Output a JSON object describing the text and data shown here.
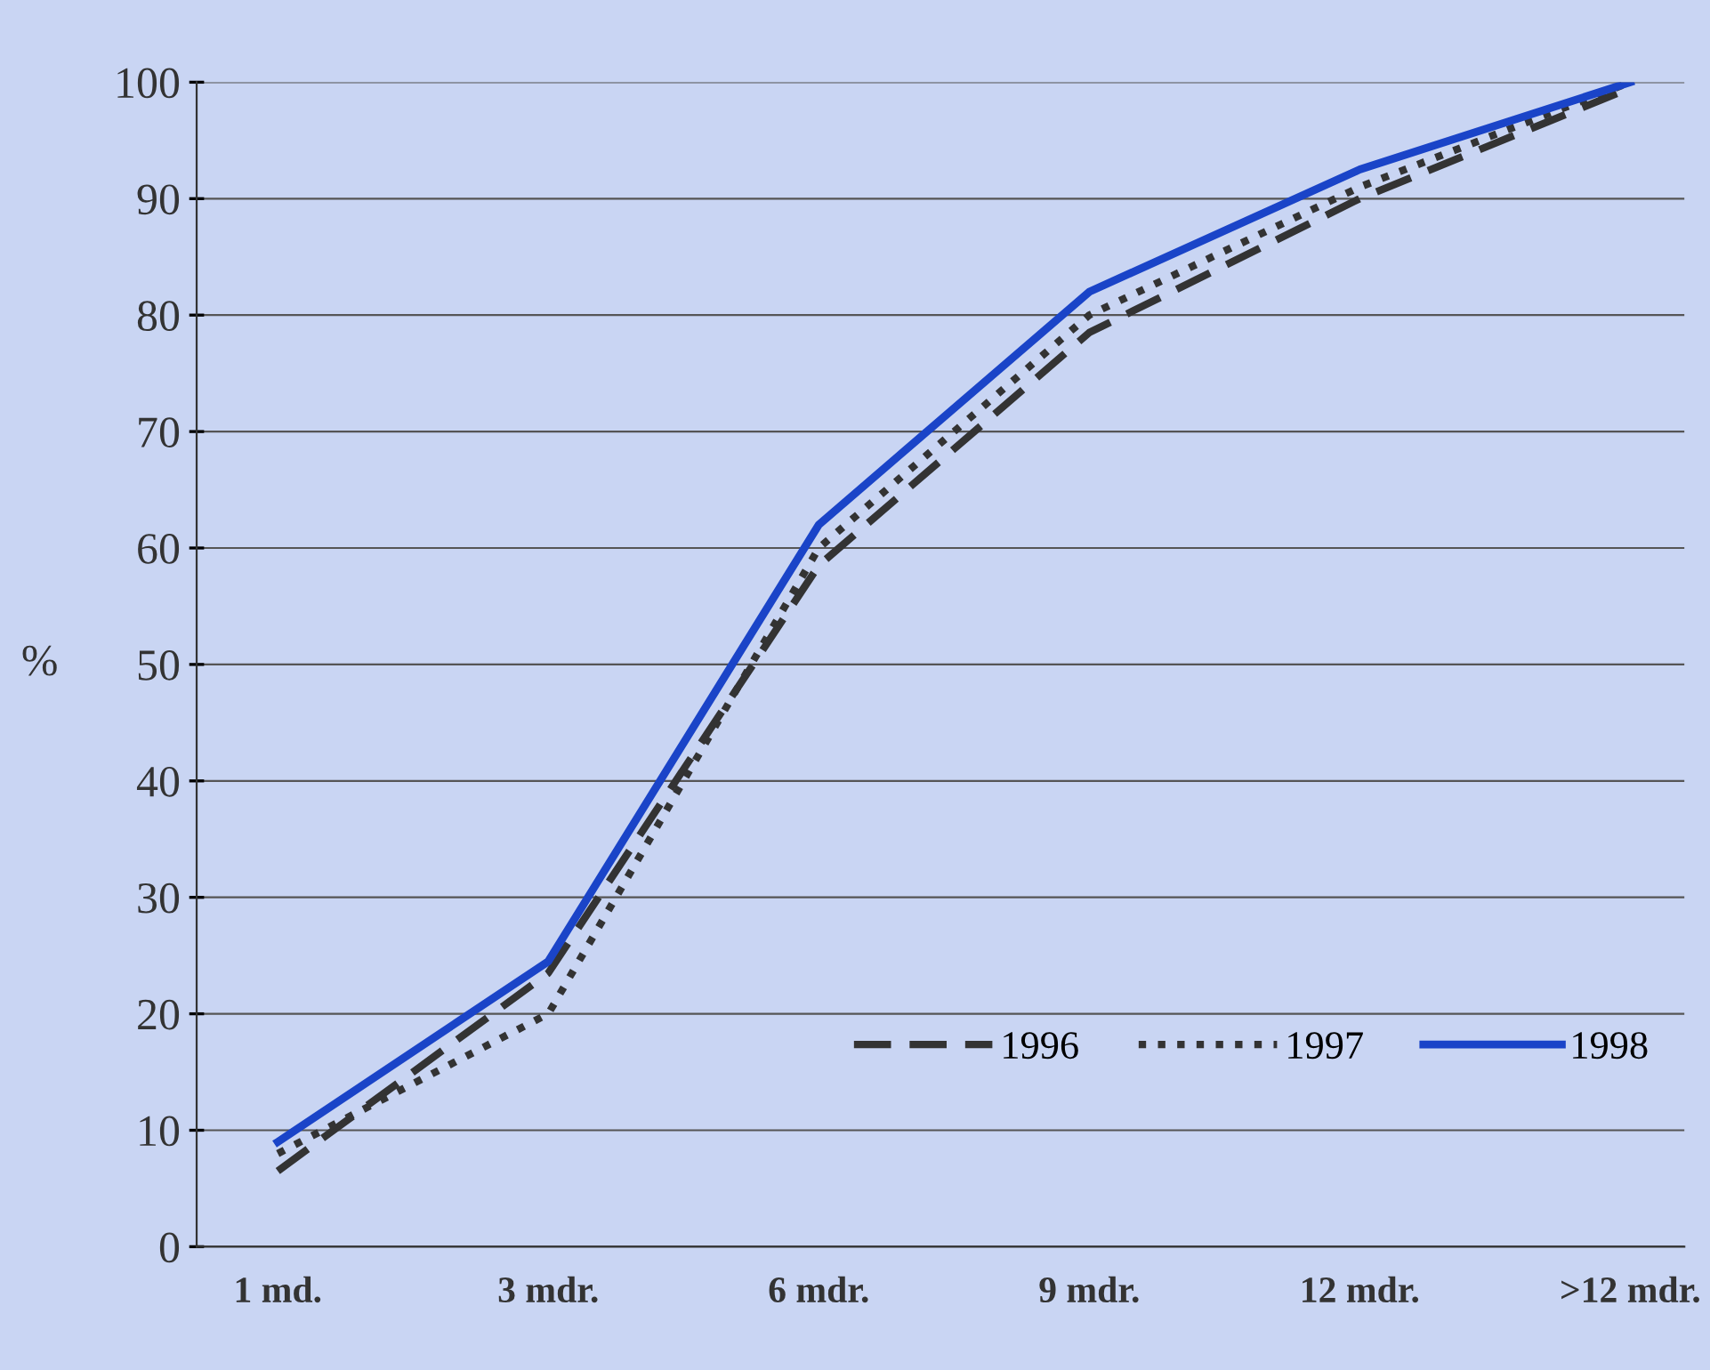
{
  "chart_data": {
    "type": "line",
    "ylabel": "%",
    "categories": [
      "1 md.",
      "3 mdr.",
      "6 mdr.",
      "9 mdr.",
      "12 mdr.",
      ">12 mdr."
    ],
    "series": [
      {
        "name": "1996",
        "color": "#333333",
        "line_style": "dashed",
        "values": [
          6.5,
          23.5,
          58.5,
          78.5,
          90,
          99.5
        ]
      },
      {
        "name": "1997",
        "color": "#333333",
        "line_style": "dotted",
        "values": [
          8,
          20,
          60,
          80,
          91,
          100
        ]
      },
      {
        "name": "1998",
        "color": "#1a44c8",
        "line_style": "solid",
        "values": [
          9,
          24.5,
          62,
          82,
          92.5,
          100
        ]
      }
    ],
    "ylim": [
      0,
      100
    ],
    "yticks": [
      0,
      10,
      20,
      30,
      40,
      50,
      60,
      70,
      80,
      90,
      100
    ],
    "grid": "y",
    "legend": "right",
    "marker": "none"
  }
}
